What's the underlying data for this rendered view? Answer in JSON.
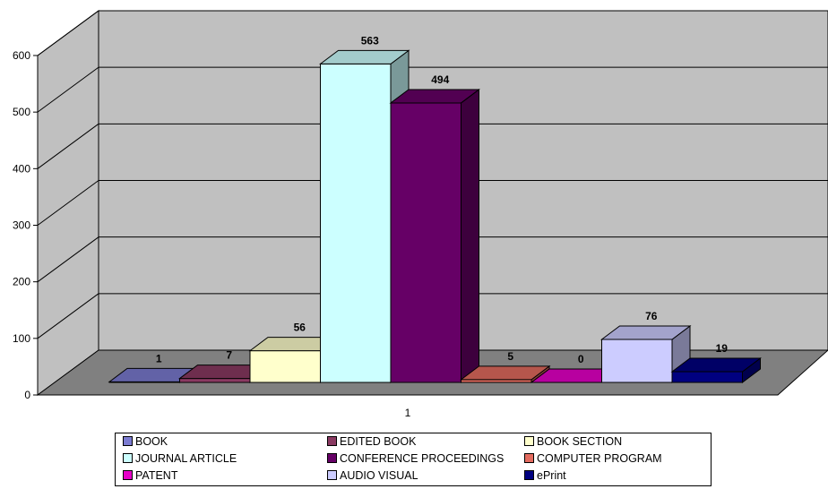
{
  "chart_data": {
    "type": "bar",
    "three_d": true,
    "categories": [
      "1"
    ],
    "series": [
      {
        "name": "BOOK",
        "values": [
          1
        ],
        "color": "#7B7BD1",
        "label": "1"
      },
      {
        "name": "EDITED BOOK",
        "values": [
          7
        ],
        "color": "#8A3A62",
        "label": "7"
      },
      {
        "name": "BOOK SECTION",
        "values": [
          56
        ],
        "color": "#FFFFCC",
        "label": "56"
      },
      {
        "name": "JOURNAL ARTICLE",
        "values": [
          563
        ],
        "color": "#CCFFFF",
        "label": "563"
      },
      {
        "name": "CONFERENCE PROCEEDINGS",
        "values": [
          494
        ],
        "color": "#660066",
        "label": "494"
      },
      {
        "name": "COMPUTER PROGRAM",
        "values": [
          5
        ],
        "color": "#E36B5F",
        "label": "5"
      },
      {
        "name": "PATENT",
        "values": [
          0
        ],
        "color": "#E600C8",
        "label": "0"
      },
      {
        "name": "AUDIO VISUAL",
        "values": [
          76
        ],
        "color": "#CCCCFF",
        "label": "76"
      },
      {
        "name": "ePrint",
        "values": [
          19
        ],
        "color": "#000080",
        "label": "19"
      }
    ],
    "yticks": [
      "0",
      "100",
      "200",
      "300",
      "400",
      "500",
      "600"
    ],
    "ylim": [
      0,
      600
    ],
    "grid": true,
    "legend_position": "bottom",
    "wall_color": "#C0C0C0",
    "floor_color": "#808080"
  }
}
